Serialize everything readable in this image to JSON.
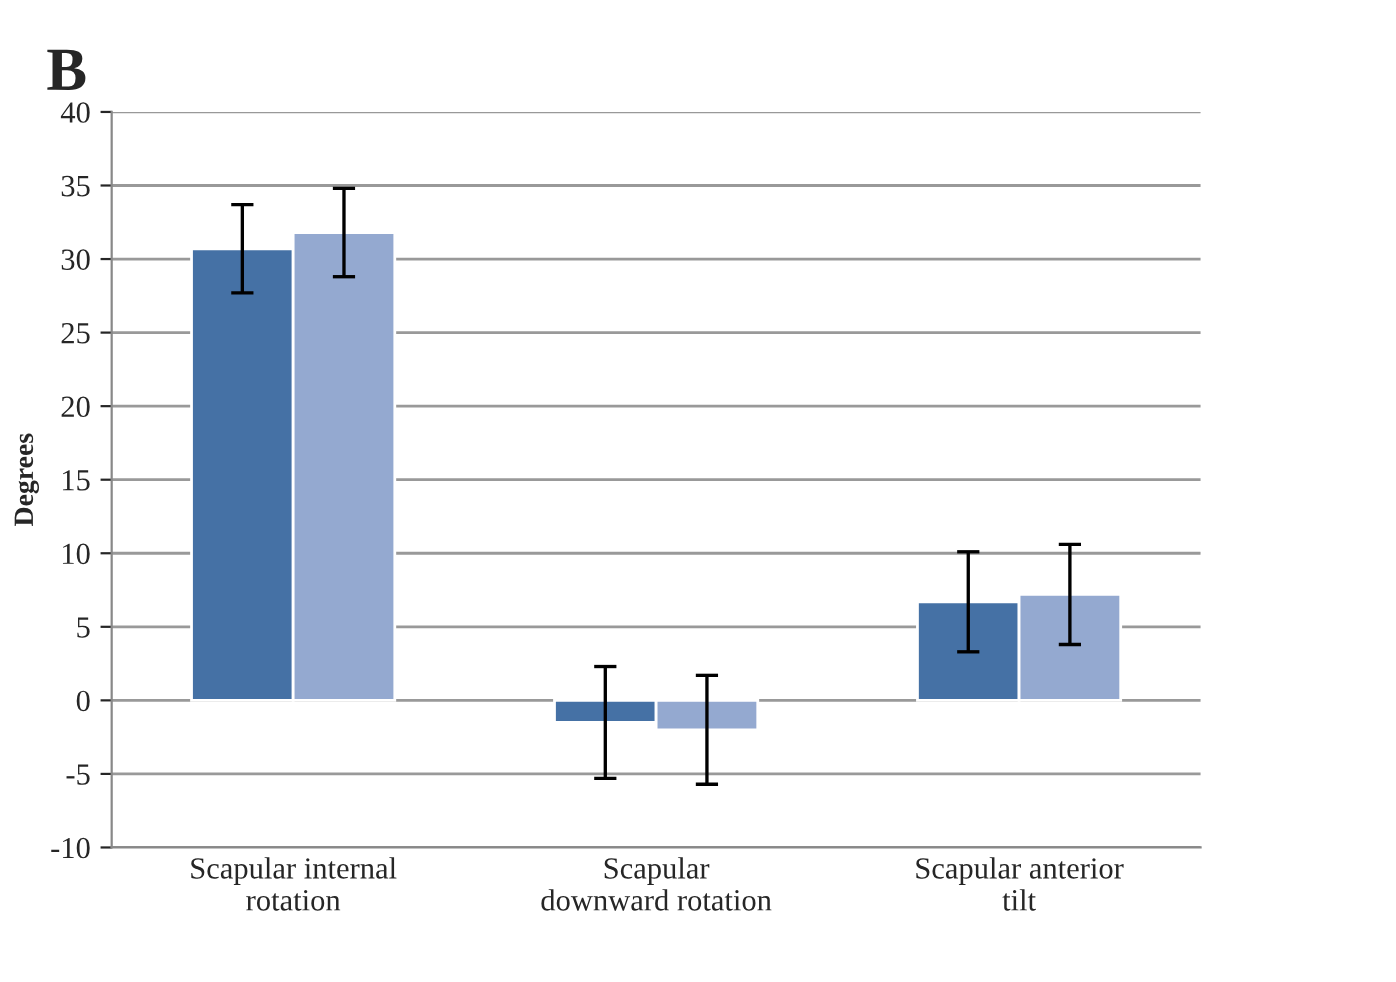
{
  "chart_data": {
    "type": "bar",
    "title": "B",
    "ylabel": "Degrees",
    "categories": [
      "Scapular internal\nrotation",
      "Scapular\ndownward rotation",
      "Scapular anterior\ntilt"
    ],
    "series": [
      {
        "color": "#4571a5",
        "values": [
          30.7,
          -1.5,
          6.7
        ],
        "errors": [
          3.0,
          3.8,
          3.4
        ]
      },
      {
        "color": "#94a9d0",
        "values": [
          31.8,
          -2.0,
          7.2
        ],
        "errors": [
          3.0,
          3.7,
          3.4
        ]
      }
    ],
    "ylim": [
      -10,
      40
    ],
    "yticks": [
      -10,
      -5,
      0,
      5,
      10,
      15,
      20,
      25,
      30,
      35,
      40
    ],
    "grid": "y",
    "legend": false
  }
}
